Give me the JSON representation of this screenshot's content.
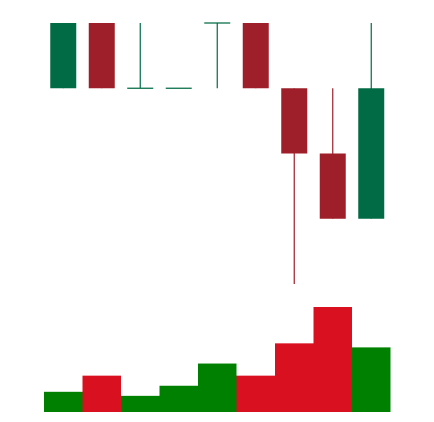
{
  "chart_data": {
    "type": "candlestick",
    "title": "",
    "xlabel": "",
    "ylabel": "",
    "grid": false,
    "legend": "none",
    "price_range": [
      0,
      6.1
    ],
    "volume_range": [
      0,
      6
    ],
    "colors": {
      "up": "#006B45",
      "down": "#9E1E2A",
      "volume_up": "#008000",
      "volume_down": "#D81020"
    },
    "candles": [
      {
        "open": 5.0,
        "high": 6.0,
        "low": 5.0,
        "close": 6.0,
        "volume": 1.0
      },
      {
        "open": 6.0,
        "high": 6.0,
        "low": 5.0,
        "close": 5.0,
        "volume": 1.8
      },
      {
        "open": 5.0,
        "high": 6.0,
        "low": 5.0,
        "close": 5.0,
        "volume": 0.8
      },
      {
        "open": 5.0,
        "high": 5.0,
        "low": 5.0,
        "close": 5.0,
        "volume": 1.3
      },
      {
        "open": 6.0,
        "high": 6.0,
        "low": 5.0,
        "close": 6.0,
        "volume": 2.4
      },
      {
        "open": 6.0,
        "high": 6.0,
        "low": 5.0,
        "close": 5.0,
        "volume": 1.8
      },
      {
        "open": 5.0,
        "high": 5.0,
        "low": 2.0,
        "close": 4.0,
        "volume": 3.4
      },
      {
        "open": 4.0,
        "high": 5.0,
        "low": 3.0,
        "close": 3.0,
        "volume": 5.2
      },
      {
        "open": 3.0,
        "high": 6.0,
        "low": 3.0,
        "close": 5.0,
        "volume": 3.2
      }
    ]
  }
}
